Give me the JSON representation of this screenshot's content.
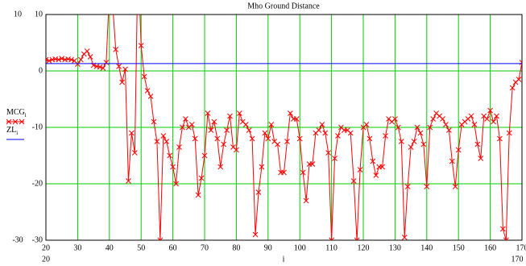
{
  "chart_data": {
    "type": "line",
    "title": "Mho Ground Distance",
    "xlabel": "i",
    "legend_subscript": "i",
    "x": [
      20,
      21,
      22,
      23,
      24,
      25,
      26,
      27,
      28,
      29,
      30,
      31,
      32,
      33,
      34,
      35,
      36,
      37,
      38,
      39,
      40,
      41,
      42,
      43,
      44,
      45,
      46,
      47,
      48,
      49,
      50,
      51,
      52,
      53,
      54,
      55,
      56,
      57,
      58,
      59,
      60,
      61,
      62,
      63,
      64,
      65,
      66,
      67,
      68,
      69,
      70,
      71,
      72,
      73,
      74,
      75,
      76,
      77,
      78,
      79,
      80,
      81,
      82,
      83,
      84,
      85,
      86,
      87,
      88,
      89,
      90,
      91,
      92,
      93,
      94,
      95,
      96,
      97,
      98,
      99,
      100,
      101,
      102,
      103,
      104,
      105,
      106,
      107,
      108,
      109,
      110,
      111,
      112,
      113,
      114,
      115,
      116,
      117,
      118,
      119,
      120,
      121,
      122,
      123,
      124,
      125,
      126,
      127,
      128,
      129,
      130,
      131,
      132,
      133,
      134,
      135,
      136,
      137,
      138,
      139,
      140,
      141,
      142,
      143,
      144,
      145,
      146,
      147,
      148,
      149,
      150,
      151,
      152,
      153,
      154,
      155,
      156,
      157,
      158,
      159,
      160,
      161,
      162,
      163,
      164,
      165,
      166,
      167,
      168,
      169,
      170
    ],
    "series": [
      {
        "name": "MCG",
        "color": "#ff0000",
        "marker": "x",
        "values": [
          2.0,
          1.8,
          2.0,
          2.1,
          2.0,
          2.2,
          2.0,
          2.1,
          2.0,
          1.8,
          1.2,
          2.0,
          3.0,
          3.5,
          2.5,
          1.0,
          0.8,
          0.7,
          0.5,
          1.5,
          14,
          12,
          3.8,
          0.8,
          -2,
          0.3,
          -19.5,
          -11,
          -14.5,
          20,
          4.5,
          -1,
          -3.5,
          -4.5,
          -9,
          -12.5,
          -30,
          -11.5,
          -12.5,
          -15,
          -17,
          -20,
          -13.5,
          -10,
          -8.5,
          -10,
          -9.5,
          -12,
          -22,
          -19,
          -15,
          -7.5,
          -10.5,
          -9,
          -12,
          -17,
          -13,
          -10.5,
          -8,
          -13.5,
          -14,
          -7.5,
          -9,
          -9.5,
          -10.5,
          -12,
          -29,
          -21.5,
          -17,
          -11,
          -12,
          -9.5,
          -12.5,
          -13,
          -18,
          -18,
          -12.5,
          -7.5,
          -8.5,
          -8.5,
          -12,
          -18,
          -23,
          -16.5,
          -16.5,
          -11,
          -10.5,
          -9.5,
          -11,
          -14.5,
          -30,
          -15.5,
          -11.5,
          -10,
          -10.5,
          -10.5,
          -11,
          -19.5,
          -30,
          -17.5,
          -10,
          -9.5,
          -12,
          -16,
          -18.5,
          -17,
          -17,
          -11.5,
          -8.5,
          -9,
          -8.5,
          -10,
          -12.5,
          -29.5,
          -20.5,
          -13.5,
          -12.5,
          -10,
          -11,
          -13,
          -20.5,
          -10,
          -8.5,
          -7.5,
          -8,
          -8.5,
          -9.5,
          -10.5,
          -16,
          -20.5,
          -14,
          -9.5,
          -9,
          -8.5,
          -8,
          -9.5,
          -13,
          -15.5,
          -8,
          -8.5,
          -7,
          -9,
          -8,
          -12,
          -28,
          -30,
          -11,
          -3,
          -2,
          -1.5,
          1.5
        ]
      },
      {
        "name": "ZL",
        "color": "#0000ff",
        "values": [
          1.3,
          1.3,
          1.3,
          1.3,
          1.3,
          1.3,
          1.3,
          1.3,
          1.3,
          1.3,
          1.3,
          1.3,
          1.3,
          1.3,
          1.3,
          1.3,
          1.3,
          1.3,
          1.3,
          1.3,
          1.3,
          1.3,
          1.3,
          1.3,
          1.3,
          1.3,
          1.3,
          1.3,
          1.3,
          1.3,
          1.3,
          1.3,
          1.3,
          1.3,
          1.3,
          1.3,
          1.3,
          1.3,
          1.3,
          1.3,
          1.3,
          1.3,
          1.3,
          1.3,
          1.3,
          1.3,
          1.3,
          1.3,
          1.3,
          1.3,
          1.3,
          1.3,
          1.3,
          1.3,
          1.3,
          1.3,
          1.3,
          1.3,
          1.3,
          1.3,
          1.3,
          1.3,
          1.3,
          1.3,
          1.3,
          1.3,
          1.3,
          1.3,
          1.3,
          1.3,
          1.3,
          1.3,
          1.3,
          1.3,
          1.3,
          1.3,
          1.3,
          1.3,
          1.3,
          1.3,
          1.3,
          1.3,
          1.3,
          1.3,
          1.3,
          1.3,
          1.3,
          1.3,
          1.3,
          1.3,
          1.3,
          1.3,
          1.3,
          1.3,
          1.3,
          1.3,
          1.3,
          1.3,
          1.3,
          1.3,
          1.3,
          1.3,
          1.3,
          1.3,
          1.3,
          1.3,
          1.3,
          1.3,
          1.3,
          1.3,
          1.3,
          1.3,
          1.3,
          1.3,
          1.3,
          1.3,
          1.3,
          1.3,
          1.3,
          1.3,
          1.3,
          1.3,
          1.3,
          1.3,
          1.3,
          1.3,
          1.3,
          1.3,
          1.3,
          1.3,
          1.3,
          1.3,
          1.3,
          1.3,
          1.3,
          1.3,
          1.3,
          1.3,
          1.3,
          1.3,
          1.3,
          1.3,
          1.3,
          1.3,
          1.3,
          1.3,
          1.3,
          1.3,
          1.3,
          1.3,
          1.3
        ]
      }
    ],
    "xlim": [
      20,
      170
    ],
    "ylim": [
      -30,
      10
    ],
    "xticks": [
      20,
      30,
      40,
      50,
      60,
      70,
      80,
      90,
      100,
      110,
      120,
      130,
      140,
      150,
      160,
      170
    ],
    "yticks": [
      10,
      0,
      -10,
      -20,
      -30
    ],
    "grid": true,
    "grid_color": "#00cc00"
  }
}
